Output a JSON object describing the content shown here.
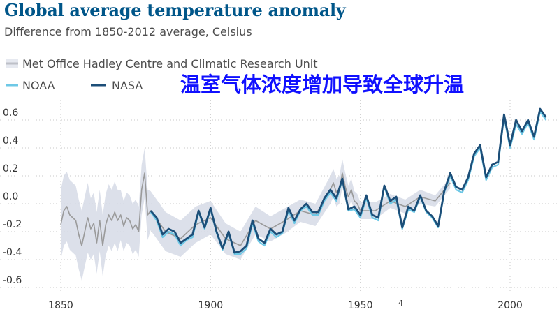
{
  "chart_data": {
    "type": "line",
    "title": "Global average temperature anomaly",
    "subtitle": "Difference from 1850-2012 average, Celsius",
    "overlay_caption": "温室气体浓度增加导致全球升温",
    "xlabel": "",
    "ylabel": "",
    "xlim": [
      1850,
      2013
    ],
    "ylim": [
      -0.65,
      0.72
    ],
    "x_ticks": [
      "1850",
      "1900",
      "1950",
      "2000"
    ],
    "y_ticks": [
      "0.6",
      "0.4",
      "0.2",
      "0.0",
      "-0.2",
      "-0.4",
      "-0.6"
    ],
    "grid": true,
    "legend_position": "top-left",
    "page_number": "4",
    "series": [
      {
        "name": "Met Office Hadley Centre and Climatic Research Unit",
        "color": "#9a9a9a",
        "band_color": "#d6dbe6",
        "x": [
          1850,
          1851,
          1852,
          1853,
          1854,
          1855,
          1856,
          1857,
          1858,
          1859,
          1860,
          1861,
          1862,
          1863,
          1864,
          1865,
          1866,
          1867,
          1868,
          1869,
          1870,
          1871,
          1872,
          1873,
          1874,
          1875,
          1876,
          1877,
          1878,
          1879,
          1880,
          1885,
          1890,
          1895,
          1900,
          1905,
          1910,
          1915,
          1920,
          1925,
          1930,
          1935,
          1940,
          1941,
          1942,
          1943,
          1944,
          1945,
          1946,
          1947,
          1948,
          1949,
          1950,
          1955,
          1960,
          1965,
          1970,
          1975,
          1980
        ],
        "values": [
          -0.15,
          -0.05,
          -0.02,
          -0.08,
          -0.1,
          -0.12,
          -0.22,
          -0.3,
          -0.2,
          -0.1,
          -0.18,
          -0.14,
          -0.28,
          -0.12,
          -0.3,
          -0.15,
          -0.08,
          -0.12,
          -0.06,
          -0.12,
          -0.08,
          -0.16,
          -0.1,
          -0.12,
          -0.18,
          -0.15,
          -0.2,
          0.1,
          0.22,
          -0.08,
          -0.05,
          -0.2,
          -0.25,
          -0.15,
          -0.1,
          -0.25,
          -0.3,
          -0.12,
          -0.18,
          -0.12,
          -0.05,
          -0.08,
          0.1,
          0.15,
          0.08,
          0.1,
          0.22,
          0.12,
          0.05,
          0.1,
          0.02,
          0.0,
          -0.05,
          -0.05,
          0.02,
          -0.02,
          0.05,
          0.02,
          0.15
        ],
        "band": [
          0.25,
          0.25,
          0.25,
          0.25,
          0.25,
          0.25,
          0.25,
          0.25,
          0.25,
          0.25,
          0.22,
          0.22,
          0.22,
          0.22,
          0.22,
          0.22,
          0.22,
          0.22,
          0.22,
          0.22,
          0.18,
          0.18,
          0.18,
          0.18,
          0.18,
          0.18,
          0.18,
          0.18,
          0.18,
          0.18,
          0.14,
          0.14,
          0.13,
          0.13,
          0.12,
          0.11,
          0.1,
          0.1,
          0.09,
          0.09,
          0.08,
          0.08,
          0.1,
          0.1,
          0.1,
          0.1,
          0.1,
          0.1,
          0.08,
          0.08,
          0.07,
          0.07,
          0.06,
          0.06,
          0.05,
          0.05,
          0.05,
          0.04,
          0.04
        ]
      },
      {
        "name": "NOAA",
        "color": "#6ec8e6",
        "x": [
          1880,
          1882,
          1884,
          1886,
          1888,
          1890,
          1892,
          1894,
          1896,
          1898,
          1900,
          1902,
          1904,
          1906,
          1908,
          1910,
          1912,
          1914,
          1916,
          1918,
          1920,
          1922,
          1924,
          1926,
          1928,
          1930,
          1932,
          1934,
          1936,
          1938,
          1940,
          1942,
          1944,
          1946,
          1948,
          1950,
          1952,
          1954,
          1956,
          1958,
          1960,
          1962,
          1964,
          1966,
          1968,
          1970,
          1972,
          1974,
          1976,
          1978,
          1980,
          1982,
          1984,
          1986,
          1988,
          1990,
          1992,
          1994,
          1996,
          1998,
          2000,
          2002,
          2004,
          2006,
          2008,
          2010,
          2012
        ],
        "values": [
          -0.06,
          -0.12,
          -0.24,
          -0.2,
          -0.22,
          -0.3,
          -0.26,
          -0.24,
          -0.06,
          -0.18,
          -0.04,
          -0.21,
          -0.33,
          -0.21,
          -0.36,
          -0.36,
          -0.32,
          -0.14,
          -0.27,
          -0.3,
          -0.2,
          -0.24,
          -0.21,
          -0.05,
          -0.14,
          -0.05,
          -0.02,
          -0.08,
          -0.08,
          0.02,
          0.08,
          0.02,
          0.17,
          -0.05,
          -0.04,
          -0.1,
          0.04,
          -0.1,
          -0.12,
          0.12,
          0.0,
          0.03,
          -0.18,
          -0.04,
          -0.06,
          0.05,
          -0.06,
          -0.1,
          -0.17,
          0.08,
          0.2,
          0.1,
          0.08,
          0.17,
          0.34,
          0.4,
          0.17,
          0.26,
          0.28,
          0.62,
          0.4,
          0.57,
          0.5,
          0.58,
          0.46,
          0.66,
          0.6
        ]
      },
      {
        "name": "NASA",
        "color": "#1c4e78",
        "x": [
          1880,
          1882,
          1884,
          1886,
          1888,
          1890,
          1892,
          1894,
          1896,
          1898,
          1900,
          1902,
          1904,
          1906,
          1908,
          1910,
          1912,
          1914,
          1916,
          1918,
          1920,
          1922,
          1924,
          1926,
          1928,
          1930,
          1932,
          1934,
          1936,
          1938,
          1940,
          1942,
          1944,
          1946,
          1948,
          1950,
          1952,
          1954,
          1956,
          1958,
          1960,
          1962,
          1964,
          1966,
          1968,
          1970,
          1972,
          1974,
          1976,
          1978,
          1980,
          1982,
          1984,
          1986,
          1988,
          1990,
          1992,
          1994,
          1996,
          1998,
          2000,
          2002,
          2004,
          2006,
          2008,
          2010,
          2012
        ],
        "values": [
          -0.05,
          -0.1,
          -0.22,
          -0.18,
          -0.2,
          -0.28,
          -0.25,
          -0.22,
          -0.05,
          -0.17,
          -0.03,
          -0.2,
          -0.32,
          -0.2,
          -0.35,
          -0.34,
          -0.3,
          -0.12,
          -0.25,
          -0.28,
          -0.18,
          -0.22,
          -0.2,
          -0.03,
          -0.12,
          -0.04,
          0.0,
          -0.06,
          -0.06,
          0.04,
          0.1,
          0.04,
          0.18,
          -0.04,
          -0.02,
          -0.08,
          0.06,
          -0.08,
          -0.1,
          0.13,
          0.02,
          0.05,
          -0.17,
          -0.02,
          -0.05,
          0.06,
          -0.05,
          -0.09,
          -0.16,
          0.09,
          0.22,
          0.12,
          0.1,
          0.19,
          0.36,
          0.42,
          0.19,
          0.28,
          0.3,
          0.64,
          0.42,
          0.6,
          0.52,
          0.6,
          0.48,
          0.68,
          0.62
        ]
      }
    ]
  }
}
